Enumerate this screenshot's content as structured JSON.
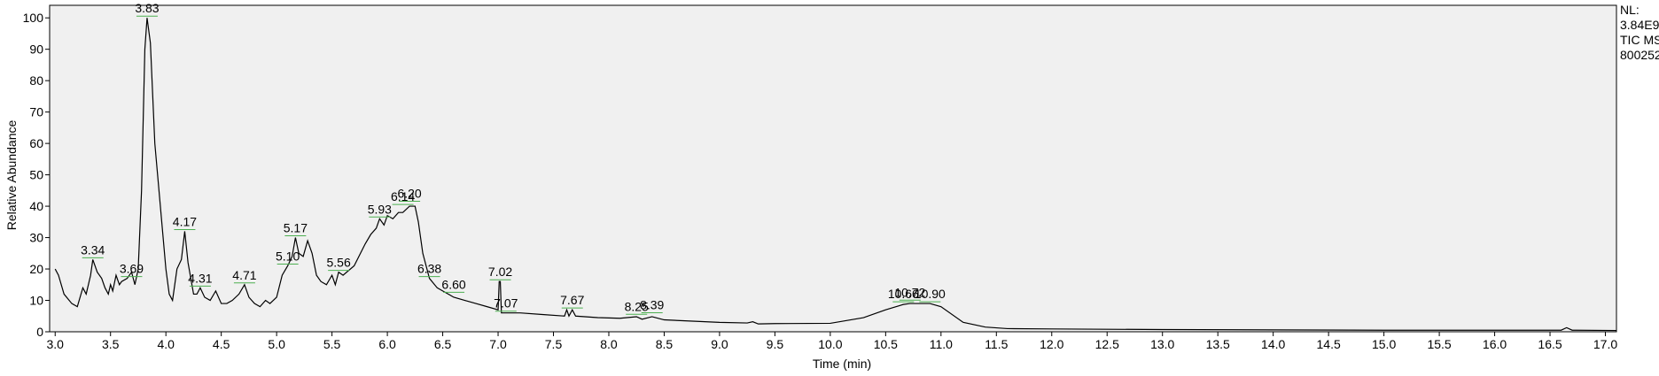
{
  "chart_data": {
    "type": "line",
    "x_label": "Time (min)",
    "y_label": "Relative Abundance",
    "info_lines": [
      "NL:",
      "3.84E9",
      "TIC  MS",
      "800252"
    ],
    "color": "#000000",
    "background": "#f0f0f0",
    "xlim": [
      2.95,
      17.1
    ],
    "ylim": [
      0,
      104
    ],
    "xticks": [
      {
        "value": 3.0,
        "label": "3.0"
      },
      {
        "value": 3.5,
        "label": "3.5"
      },
      {
        "value": 4.0,
        "label": "4.0"
      },
      {
        "value": 4.5,
        "label": "4.5"
      },
      {
        "value": 5.0,
        "label": "5.0"
      },
      {
        "value": 5.5,
        "label": "5.5"
      },
      {
        "value": 6.0,
        "label": "6.0"
      },
      {
        "value": 6.5,
        "label": "6.5"
      },
      {
        "value": 7.0,
        "label": "7.0"
      },
      {
        "value": 7.5,
        "label": "7.5"
      },
      {
        "value": 8.0,
        "label": "8.0"
      },
      {
        "value": 8.5,
        "label": "8.5"
      },
      {
        "value": 9.0,
        "label": "9.0"
      },
      {
        "value": 9.5,
        "label": "9.5"
      },
      {
        "value": 10.0,
        "label": "10.0"
      },
      {
        "value": 10.5,
        "label": "10.5"
      },
      {
        "value": 11.0,
        "label": "11.0"
      },
      {
        "value": 11.5,
        "label": "11.5"
      },
      {
        "value": 12.0,
        "label": "12.0"
      },
      {
        "value": 12.5,
        "label": "12.5"
      },
      {
        "value": 13.0,
        "label": "13.0"
      },
      {
        "value": 13.5,
        "label": "13.5"
      },
      {
        "value": 14.0,
        "label": "14.0"
      },
      {
        "value": 14.5,
        "label": "14.5"
      },
      {
        "value": 15.0,
        "label": "15.0"
      },
      {
        "value": 15.5,
        "label": "15.5"
      },
      {
        "value": 16.0,
        "label": "16.0"
      },
      {
        "value": 16.5,
        "label": "16.5"
      },
      {
        "value": 17.0,
        "label": "17.0"
      }
    ],
    "yticks": [
      0,
      10,
      20,
      30,
      40,
      50,
      60,
      70,
      80,
      90,
      100
    ],
    "x": [
      3.0,
      3.03,
      3.08,
      3.15,
      3.2,
      3.25,
      3.28,
      3.32,
      3.34,
      3.38,
      3.42,
      3.45,
      3.48,
      3.5,
      3.52,
      3.55,
      3.58,
      3.6,
      3.65,
      3.69,
      3.72,
      3.75,
      3.78,
      3.81,
      3.83,
      3.86,
      3.9,
      3.95,
      4.0,
      4.03,
      4.06,
      4.1,
      4.14,
      4.17,
      4.2,
      4.25,
      4.28,
      4.31,
      4.35,
      4.4,
      4.45,
      4.5,
      4.55,
      4.6,
      4.66,
      4.71,
      4.75,
      4.8,
      4.85,
      4.9,
      4.94,
      5.0,
      5.05,
      5.1,
      5.14,
      5.17,
      5.2,
      5.24,
      5.28,
      5.32,
      5.36,
      5.4,
      5.45,
      5.5,
      5.53,
      5.56,
      5.6,
      5.7,
      5.8,
      5.85,
      5.9,
      5.93,
      5.97,
      6.0,
      6.05,
      6.1,
      6.14,
      6.2,
      6.25,
      6.28,
      6.32,
      6.38,
      6.45,
      6.5,
      6.6,
      6.7,
      6.8,
      6.9,
      7.0,
      7.01,
      7.02,
      7.03,
      7.07,
      7.2,
      7.4,
      7.6,
      7.62,
      7.64,
      7.67,
      7.7,
      7.9,
      8.1,
      8.25,
      8.3,
      8.39,
      8.5,
      9.0,
      9.25,
      9.3,
      9.35,
      9.5,
      10.0,
      10.3,
      10.5,
      10.66,
      10.72,
      10.9,
      11.0,
      11.2,
      11.4,
      11.6,
      12.0,
      13.0,
      14.0,
      15.0,
      16.0,
      16.6,
      16.65,
      16.7,
      17.1
    ],
    "values": [
      20,
      18,
      12,
      9,
      8,
      14,
      12,
      18,
      23,
      19,
      17,
      14,
      12,
      15,
      13,
      18,
      15,
      16,
      17,
      19,
      15,
      20,
      45,
      90,
      100,
      92,
      60,
      40,
      20,
      12,
      10,
      20,
      23,
      32,
      22,
      12,
      12,
      14,
      11,
      10,
      13,
      9,
      9,
      10,
      12,
      15,
      11,
      9,
      8,
      10,
      9,
      11,
      18,
      21,
      24,
      30,
      25,
      24,
      29,
      25,
      18,
      16,
      15,
      18,
      15,
      19,
      18,
      21,
      28,
      31,
      33,
      36,
      34,
      37,
      36,
      38,
      38,
      40,
      40,
      35,
      25,
      17,
      14,
      13,
      11,
      10,
      9,
      8,
      7,
      16,
      16,
      6,
      6,
      6,
      5.5,
      5,
      7,
      5,
      7,
      5,
      4.5,
      4.3,
      4.8,
      4,
      4.8,
      3.8,
      3,
      2.8,
      3.2,
      2.5,
      2.6,
      2.7,
      4.5,
      7,
      8.7,
      9,
      9,
      8,
      3,
      1.5,
      1,
      0.9,
      0.7,
      0.6,
      0.5,
      0.5,
      0.5,
      1.3,
      0.5,
      0.4
    ],
    "peaks": [
      {
        "x": 3.34,
        "y": 23,
        "label": "3.34"
      },
      {
        "x": 3.69,
        "y": 17,
        "label": "3.69"
      },
      {
        "x": 3.83,
        "y": 100,
        "label": "3.83"
      },
      {
        "x": 4.17,
        "y": 32,
        "label": "4.17"
      },
      {
        "x": 4.31,
        "y": 14,
        "label": "4.31"
      },
      {
        "x": 4.71,
        "y": 15,
        "label": "4.71"
      },
      {
        "x": 5.1,
        "y": 21,
        "label": "5.10"
      },
      {
        "x": 5.17,
        "y": 30,
        "label": "5.17"
      },
      {
        "x": 5.56,
        "y": 19,
        "label": "5.56"
      },
      {
        "x": 5.93,
        "y": 36,
        "label": "5.93"
      },
      {
        "x": 6.14,
        "y": 40,
        "label": "6.14"
      },
      {
        "x": 6.2,
        "y": 41,
        "label": "6.20"
      },
      {
        "x": 6.38,
        "y": 17,
        "label": "6.38"
      },
      {
        "x": 6.6,
        "y": 12,
        "label": "6.60"
      },
      {
        "x": 7.02,
        "y": 16,
        "label": "7.02"
      },
      {
        "x": 7.07,
        "y": 6,
        "label": "7.07"
      },
      {
        "x": 7.67,
        "y": 7,
        "label": "7.67"
      },
      {
        "x": 8.25,
        "y": 5,
        "label": "8.25"
      },
      {
        "x": 8.39,
        "y": 5.5,
        "label": "8.39"
      },
      {
        "x": 10.66,
        "y": 9,
        "label": "10.66"
      },
      {
        "x": 10.72,
        "y": 9.5,
        "label": "10.72"
      },
      {
        "x": 10.9,
        "y": 9,
        "label": "10.90"
      }
    ]
  }
}
